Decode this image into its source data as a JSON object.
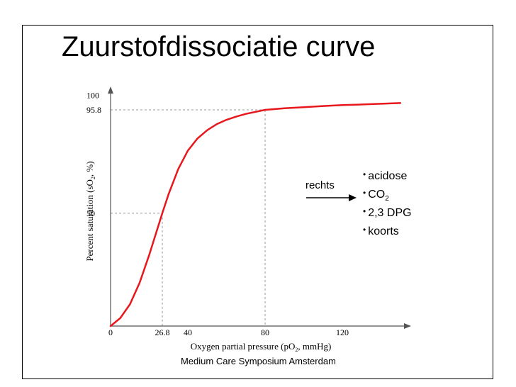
{
  "slide": {
    "title": "Zuurstofdissociatie curve",
    "footer": "Medium Care Symposium Amsterdam"
  },
  "annotation": {
    "arrow_label": "rechts",
    "items": [
      {
        "text": "acidose",
        "sub": ""
      },
      {
        "text": "CO",
        "sub": "2"
      },
      {
        "text": "2,3 DPG",
        "sub": ""
      },
      {
        "text": "koorts",
        "sub": ""
      }
    ]
  },
  "colors": {
    "curve": "#e8171c",
    "reference_lines": "#9a9a9a",
    "axis": "#555555",
    "arrow": "#000000"
  },
  "chart_data": {
    "type": "line",
    "title": "Zuurstofdissociatie curve",
    "xlabel": "Oxygen partial pressure (pO2, mmHg)",
    "ylabel": "Percent saturation (sO2, %)",
    "xlim": [
      0,
      150
    ],
    "ylim": [
      0,
      100
    ],
    "x_ticks": [
      "0",
      "26.8",
      "40",
      "80",
      "120"
    ],
    "y_ticks": [
      "100",
      "95.8",
      "50"
    ],
    "grid": false,
    "series": [
      {
        "x": [
          0,
          5,
          10,
          15,
          20,
          26.8,
          30,
          35,
          40,
          45,
          50,
          55,
          60,
          65,
          70,
          80,
          90,
          100,
          110,
          120,
          130,
          140,
          150
        ],
        "y": [
          0,
          3.5,
          9.6,
          19.1,
          31.5,
          50,
          58.4,
          69.5,
          77.7,
          83.1,
          86.8,
          89.5,
          91.4,
          92.8,
          94,
          95.8,
          96.5,
          97,
          97.5,
          97.9,
          98.2,
          98.5,
          98.8
        ]
      }
    ],
    "reference_points": [
      {
        "x": 26.8,
        "y": 50
      },
      {
        "x": 80,
        "y": 95.8
      }
    ]
  }
}
